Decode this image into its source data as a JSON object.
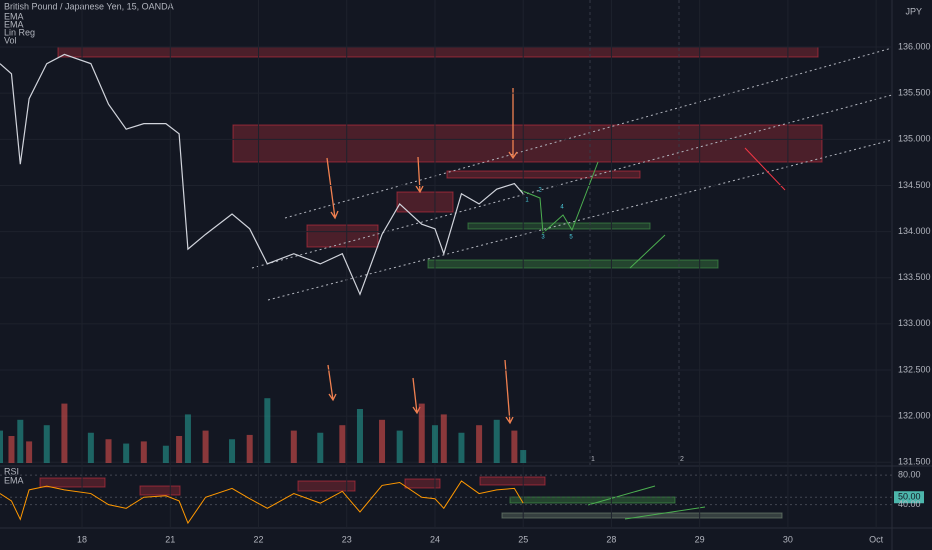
{
  "chart_data": {
    "type": "line",
    "title": "British Pound / Japanese Yen, 15, OANDA",
    "indicators": [
      "EMA",
      "EMA",
      "Lin Reg",
      "Vol"
    ],
    "currency": "JPY",
    "color": "#d1d4dc",
    "x": [
      -0.93,
      -0.8,
      -0.7,
      -0.6,
      -0.4,
      -0.2,
      0.1,
      0.3,
      0.5,
      0.7,
      0.95,
      1.1,
      1.2,
      1.4,
      1.7,
      1.9,
      2.1,
      2.4,
      2.7,
      2.95,
      3.15,
      3.4,
      3.6,
      3.85,
      4.0,
      4.1,
      4.3,
      4.5,
      4.7,
      4.9,
      5.0
    ],
    "values": [
      135.82,
      135.71,
      134.73,
      135.44,
      135.82,
      135.92,
      135.82,
      135.38,
      135.11,
      135.17,
      135.17,
      135.06,
      133.81,
      133.97,
      134.19,
      134.03,
      133.65,
      133.76,
      133.65,
      133.76,
      133.32,
      133.97,
      134.3,
      134.08,
      134.03,
      133.76,
      134.41,
      134.3,
      134.46,
      134.52,
      134.41
    ],
    "xlim": [
      -0.93,
      9.18
    ],
    "xticks": [
      {
        "value": 0,
        "label": "18"
      },
      {
        "value": 1,
        "label": "21"
      },
      {
        "value": 2,
        "label": "22"
      },
      {
        "value": 3,
        "label": "23"
      },
      {
        "value": 4,
        "label": "24"
      },
      {
        "value": 5,
        "label": "25"
      },
      {
        "value": 6,
        "label": "28"
      },
      {
        "value": 7,
        "label": "29"
      },
      {
        "value": 8,
        "label": "30"
      },
      {
        "value": 9,
        "label": "Oct"
      }
    ],
    "ylim": [
      131.47,
      136.51
    ],
    "yticks": [
      {
        "value": 136,
        "label": "136.000"
      },
      {
        "value": 135.5,
        "label": "135.500"
      },
      {
        "value": 135,
        "label": "135.000"
      },
      {
        "value": 134.5,
        "label": "134.500"
      },
      {
        "value": 134,
        "label": "134.000"
      },
      {
        "value": 133.5,
        "label": "133.500"
      },
      {
        "value": 133,
        "label": "133.000"
      },
      {
        "value": 132.5,
        "label": "132.500"
      },
      {
        "value": 132,
        "label": "132.000"
      },
      {
        "value": 131.5,
        "label": "131.500"
      }
    ],
    "volume": {
      "color": "#26a69a",
      "ylim": [
        0,
        100
      ],
      "values": [
        30,
        25,
        40,
        20,
        35,
        55,
        28,
        22,
        18,
        20,
        16,
        25,
        45,
        30,
        22,
        26,
        60,
        30,
        28,
        35,
        50,
        40,
        30,
        55,
        35,
        45,
        28,
        35,
        40,
        30,
        12
      ]
    },
    "rsi": {
      "title": "RSI",
      "indicator": "EMA",
      "color": "#ff9800",
      "ylim": [
        8.3,
        91
      ],
      "values": [
        55,
        45,
        20,
        60,
        65,
        60,
        55,
        40,
        35,
        50,
        52,
        45,
        15,
        50,
        62,
        48,
        35,
        55,
        42,
        58,
        30,
        66,
        70,
        50,
        48,
        35,
        72,
        55,
        60,
        62,
        42
      ],
      "yticks": [
        {
          "value": 80,
          "label": "80.00"
        },
        {
          "value": 50,
          "label": "50.00"
        },
        {
          "value": 40,
          "label": "40.00"
        }
      ]
    },
    "wave_labels": [
      "1",
      "2",
      "3",
      "4",
      "5"
    ],
    "marker_labels": [
      "1",
      "2"
    ]
  }
}
